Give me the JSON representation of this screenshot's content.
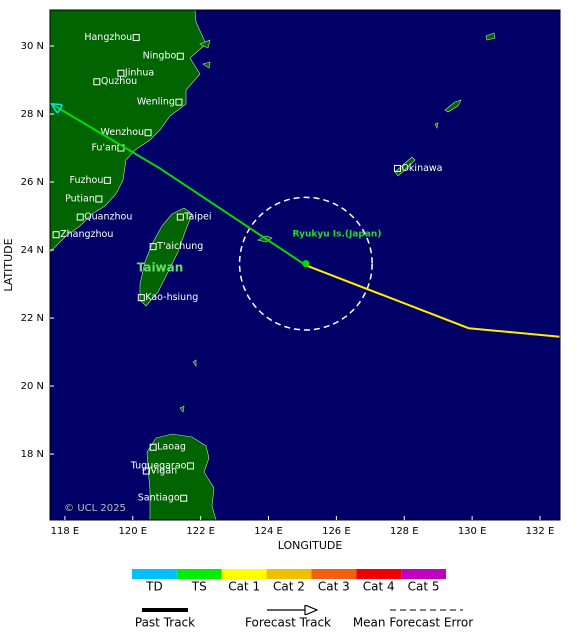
{
  "chart_data": {
    "type": "map",
    "xlabel": "LONGITUDE",
    "ylabel": "LATITUDE",
    "xlim": [
      117.56,
      132.59
    ],
    "ylim": [
      16.06,
      31.06
    ],
    "xticks": [
      {
        "value": 118,
        "label": "118 E"
      },
      {
        "value": 120,
        "label": "120 E"
      },
      {
        "value": 122,
        "label": "122 E"
      },
      {
        "value": 124,
        "label": "124 E"
      },
      {
        "value": 126,
        "label": "126 E"
      },
      {
        "value": 128,
        "label": "128 E"
      },
      {
        "value": 130,
        "label": "130 E"
      },
      {
        "value": 132,
        "label": "132 E"
      }
    ],
    "yticks": [
      {
        "value": 18,
        "label": "18 N"
      },
      {
        "value": 20,
        "label": "20 N"
      },
      {
        "value": 22,
        "label": "22 N"
      },
      {
        "value": 24,
        "label": "24 N"
      },
      {
        "value": 26,
        "label": "26 N"
      },
      {
        "value": 28,
        "label": "28 N"
      },
      {
        "value": 30,
        "label": "30 N"
      }
    ],
    "cities": [
      {
        "name": "Hangzhou",
        "lon": 120.1,
        "lat": 30.25
      },
      {
        "name": "Ningbo",
        "lon": 121.4,
        "lat": 29.7
      },
      {
        "name": "Jinhua",
        "lon": 119.65,
        "lat": 29.2
      },
      {
        "name": "Quzhou",
        "lon": 118.94,
        "lat": 28.95
      },
      {
        "name": "Wenling",
        "lon": 121.36,
        "lat": 28.35
      },
      {
        "name": "Wenzhou",
        "lon": 120.45,
        "lat": 27.45
      },
      {
        "name": "Fu'an",
        "lon": 119.65,
        "lat": 27.0
      },
      {
        "name": "Fuzhou",
        "lon": 119.25,
        "lat": 26.05
      },
      {
        "name": "Putian",
        "lon": 119.0,
        "lat": 25.5
      },
      {
        "name": "Quanzhou",
        "lon": 118.45,
        "lat": 24.97
      },
      {
        "name": "Zhangzhou",
        "lon": 117.74,
        "lat": 24.45
      },
      {
        "name": "Taipei",
        "lon": 121.4,
        "lat": 24.97
      },
      {
        "name": "T'aichung",
        "lon": 120.6,
        "lat": 24.1
      },
      {
        "name": "Kao-hsiung",
        "lon": 120.25,
        "lat": 22.6
      },
      {
        "name": "Okinawa",
        "lon": 127.8,
        "lat": 26.4
      },
      {
        "name": "Laoag",
        "lon": 120.6,
        "lat": 18.2
      },
      {
        "name": "Tuguegarao",
        "lon": 121.7,
        "lat": 17.65
      },
      {
        "name": "Vigan",
        "lon": 120.4,
        "lat": 17.5
      },
      {
        "name": "Santiago",
        "lon": 121.5,
        "lat": 16.7
      }
    ],
    "region_labels": [
      "Taiwan",
      "Ryukyu Is.(Japan)"
    ],
    "copyright": "© UCL 2025",
    "past_track": {
      "name": "Past Track",
      "color": "#00dd00",
      "lon": [
        117.6,
        120.8,
        125.1
      ],
      "lat": [
        28.3,
        26.4,
        23.55
      ]
    },
    "forecast_track": {
      "name": "Forecast Track",
      "color": "#ffee00",
      "lon": [
        125.1,
        129.9,
        132.59
      ],
      "lat": [
        23.55,
        21.7,
        21.45
      ]
    },
    "error_circle": {
      "name": "Mean Forecast Error",
      "lon": 125.1,
      "lat": 23.6,
      "radius_deg": 1.95
    },
    "categories": [
      {
        "name": "TD",
        "color": "#00bfff"
      },
      {
        "name": "TS",
        "color": "#00ee00"
      },
      {
        "name": "Cat 1",
        "color": "#ffff00"
      },
      {
        "name": "Cat 2",
        "color": "#f0c000"
      },
      {
        "name": "Cat 3",
        "color": "#f06010"
      },
      {
        "name": "Cat 4",
        "color": "#ee0000"
      },
      {
        "name": "Cat 5",
        "color": "#c000c0"
      }
    ]
  }
}
